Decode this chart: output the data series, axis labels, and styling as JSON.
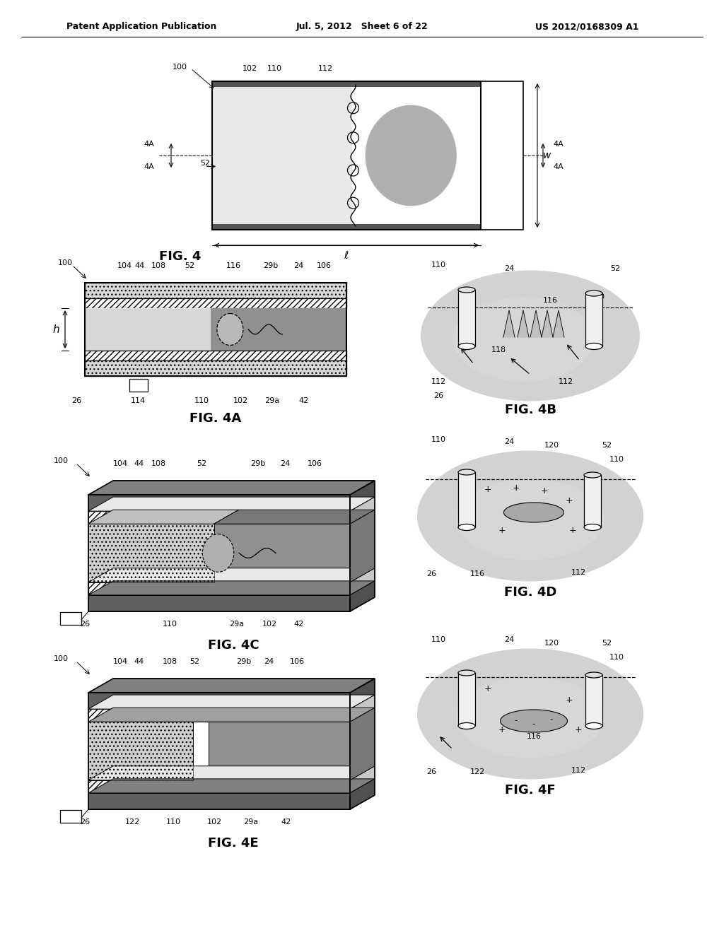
{
  "title_left": "Patent Application Publication",
  "title_mid": "Jul. 5, 2012   Sheet 6 of 22",
  "title_right": "US 2012/0168309 A1",
  "fig4_label": "FIG. 4",
  "fig4a_label": "FIG. 4A",
  "fig4b_label": "FIG. 4B",
  "fig4c_label": "FIG. 4C",
  "fig4d_label": "FIG. 4D",
  "fig4e_label": "FIG. 4E",
  "fig4f_label": "FIG. 4F",
  "background": "#ffffff",
  "header_fontsize": 9,
  "label_fontsize": 7.5,
  "fig_label_fontsize": 13,
  "plate_color": "#707070",
  "hatch_diel": "////",
  "fluid_dot_color": "#d8d8d8",
  "fluid_gray_color": "#909090",
  "blob_outer": "#c8c8c8",
  "blob_inner": "#d8d8d8"
}
